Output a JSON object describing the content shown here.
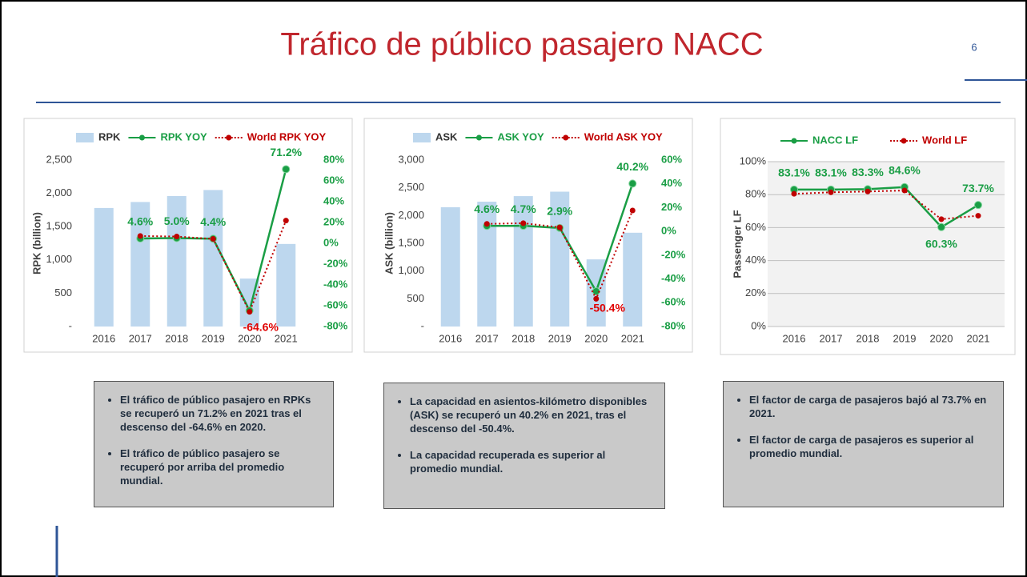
{
  "header": {
    "title": "Tráfico de público pasajero NACC",
    "page": "6"
  },
  "chart_data": [
    {
      "type": "combo",
      "categories": [
        "2016",
        "2017",
        "2018",
        "2019",
        "2020",
        "2021"
      ],
      "y_label": "RPK (billion)",
      "ylim": [
        0,
        2500
      ],
      "yticks": [
        {
          "value": 0,
          "label": "-"
        },
        500,
        {
          "value": 1000,
          "label": "1,000"
        },
        {
          "value": 1500,
          "label": "1,500"
        },
        {
          "value": 2000,
          "label": "2,000"
        },
        {
          "value": 2500,
          "label": "2,500"
        }
      ],
      "y2lim": [
        -80,
        80
      ],
      "y2ticks": [
        {
          "value": -80,
          "label": "-80%"
        },
        {
          "value": -60,
          "label": "-60%"
        },
        {
          "value": -40,
          "label": "-40%"
        },
        {
          "value": -20,
          "label": "-20%"
        },
        {
          "value": 0,
          "label": "0%"
        },
        {
          "value": 20,
          "label": "20%"
        },
        {
          "value": 40,
          "label": "40%"
        },
        {
          "value": 60,
          "label": "60%"
        },
        {
          "value": 80,
          "label": "80%"
        }
      ],
      "grid": false,
      "series": [
        {
          "name": "RPK",
          "kind": "bar",
          "color": "#bdd7ee",
          "values": [
            1780,
            1870,
            1960,
            2050,
            720,
            1240
          ]
        },
        {
          "name": "RPK YOY",
          "kind": "line",
          "axis": "y2",
          "color": "#1a9e45",
          "line_style": "solid",
          "values": [
            null,
            4.6,
            5.0,
            4.4,
            -64.6,
            71.2
          ],
          "value_labels": [
            null,
            "4.6%",
            "5.0%",
            "4.4%",
            "-64.6%",
            "71.2%"
          ]
        },
        {
          "name": "World RPK YOY",
          "kind": "line",
          "axis": "y2",
          "color": "#c00000",
          "line_style": "dotted",
          "values": [
            null,
            7.0,
            6.5,
            4.2,
            -65.9,
            21.8
          ]
        }
      ]
    },
    {
      "type": "combo",
      "categories": [
        "2016",
        "2017",
        "2018",
        "2019",
        "2020",
        "2021"
      ],
      "y_label": "ASK (billion)",
      "ylim": [
        0,
        3000
      ],
      "yticks": [
        {
          "value": 0,
          "label": "-"
        },
        500,
        {
          "value": 1000,
          "label": "1,000"
        },
        {
          "value": 1500,
          "label": "1,500"
        },
        {
          "value": 2000,
          "label": "2,000"
        },
        {
          "value": 2500,
          "label": "2,500"
        },
        {
          "value": 3000,
          "label": "3,000"
        }
      ],
      "y2lim": [
        -80,
        60
      ],
      "y2ticks": [
        {
          "value": -80,
          "label": "-80%"
        },
        {
          "value": -60,
          "label": "-60%"
        },
        {
          "value": -40,
          "label": "-40%"
        },
        {
          "value": -20,
          "label": "-20%"
        },
        {
          "value": 0,
          "label": "0%"
        },
        {
          "value": 20,
          "label": "20%"
        },
        {
          "value": 40,
          "label": "40%"
        },
        {
          "value": 60,
          "label": "60%"
        }
      ],
      "grid": false,
      "series": [
        {
          "name": "ASK",
          "kind": "bar",
          "color": "#bdd7ee",
          "values": [
            2150,
            2250,
            2350,
            2430,
            1210,
            1690
          ]
        },
        {
          "name": "ASK YOY",
          "kind": "line",
          "axis": "y2",
          "color": "#1a9e45",
          "line_style": "solid",
          "values": [
            null,
            4.6,
            4.7,
            2.9,
            -50.4,
            40.2
          ],
          "value_labels": [
            null,
            "4.6%",
            "4.7%",
            "2.9%",
            "-50.4%",
            "40.2%"
          ]
        },
        {
          "name": "World ASK YOY",
          "kind": "line",
          "axis": "y2",
          "color": "#c00000",
          "line_style": "dotted",
          "values": [
            null,
            6.3,
            6.9,
            3.4,
            -56.7,
            17.6
          ]
        }
      ]
    },
    {
      "type": "line",
      "categories": [
        "2016",
        "2017",
        "2018",
        "2019",
        "2020",
        "2021"
      ],
      "y_label": "Passenger LF",
      "ylim": [
        0,
        100
      ],
      "yticks": [
        {
          "value": 0,
          "label": "0%"
        },
        {
          "value": 20,
          "label": "20%"
        },
        {
          "value": 40,
          "label": "40%"
        },
        {
          "value": 60,
          "label": "60%"
        },
        {
          "value": 80,
          "label": "80%"
        },
        {
          "value": 100,
          "label": "100%"
        }
      ],
      "grid": true,
      "series": [
        {
          "name": "NACC LF",
          "kind": "line",
          "color": "#1a9e45",
          "line_style": "solid",
          "values": [
            83.1,
            83.1,
            83.3,
            84.6,
            60.3,
            73.7
          ],
          "value_labels": [
            "83.1%",
            "83.1%",
            "83.3%",
            "84.6%",
            "60.3%",
            "73.7%"
          ]
        },
        {
          "name": "World LF",
          "kind": "line",
          "color": "#c00000",
          "line_style": "dotted",
          "values": [
            80.5,
            81.4,
            81.9,
            82.5,
            65.1,
            67.2
          ]
        }
      ]
    }
  ],
  "notes": [
    {
      "bullets": [
        "El tráfico de público pasajero en RPKs se recuperó un 71.2% en 2021 tras el descenso del -64.6% en 2020.",
        "El tráfico de público pasajero se recuperó por arriba del promedio mundial."
      ]
    },
    {
      "bullets": [
        "La capacidad en asientos-kilómetro disponibles (ASK) se recuperó un 40.2% en 2021, tras el descenso del -50.4%.",
        "La capacidad recuperada es superior al promedio mundial."
      ]
    },
    {
      "bullets": [
        "El factor de carga de pasajeros bajó al 73.7% en 2021.",
        "El factor de carga de pasajeros es superior al promedio mundial."
      ]
    }
  ]
}
